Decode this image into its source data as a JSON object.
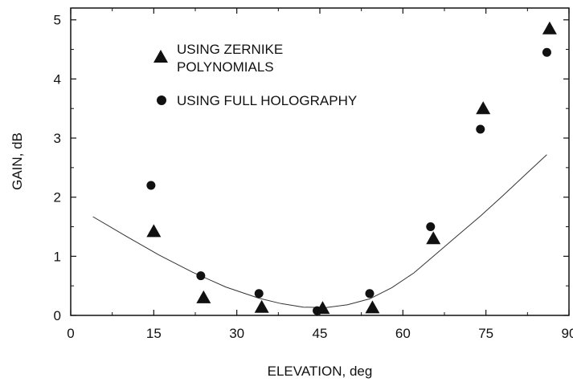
{
  "chart_data": {
    "type": "scatter",
    "title": "",
    "xlabel": "ELEVATION, deg",
    "ylabel": "GAIN, dB",
    "xlim": [
      0,
      90
    ],
    "ylim": [
      0,
      5.2
    ],
    "x_ticks": [
      0,
      15,
      30,
      45,
      60,
      75,
      90
    ],
    "y_ticks": [
      0,
      1,
      2,
      3,
      4,
      5
    ],
    "grid": false,
    "legend_position": "top-left",
    "series": [
      {
        "name": "USING ZERNIKE POLYNOMIALS",
        "marker": "triangle",
        "points": [
          [
            15,
            1.42
          ],
          [
            24,
            0.3
          ],
          [
            34.5,
            0.14
          ],
          [
            45.5,
            0.12
          ],
          [
            54.5,
            0.13
          ],
          [
            65.5,
            1.3
          ],
          [
            74.5,
            3.5
          ],
          [
            86.5,
            4.85
          ]
        ]
      },
      {
        "name": "USING FULL HOLOGRAPHY",
        "marker": "circle",
        "points": [
          [
            14.5,
            2.2
          ],
          [
            23.5,
            0.67
          ],
          [
            34,
            0.37
          ],
          [
            44.5,
            0.08
          ],
          [
            54,
            0.37
          ],
          [
            65,
            1.5
          ],
          [
            74,
            3.15
          ],
          [
            86,
            4.45
          ]
        ]
      },
      {
        "marker": "line",
        "points": [
          [
            4,
            1.67
          ],
          [
            10,
            1.34
          ],
          [
            16,
            1.02
          ],
          [
            22,
            0.73
          ],
          [
            28,
            0.48
          ],
          [
            34,
            0.29
          ],
          [
            38,
            0.2
          ],
          [
            42,
            0.14
          ],
          [
            46,
            0.13
          ],
          [
            50,
            0.18
          ],
          [
            54,
            0.28
          ],
          [
            58,
            0.47
          ],
          [
            62,
            0.72
          ],
          [
            66,
            1.04
          ],
          [
            70,
            1.36
          ],
          [
            74,
            1.68
          ],
          [
            78,
            2.02
          ],
          [
            82,
            2.37
          ],
          [
            86,
            2.72
          ]
        ]
      }
    ]
  }
}
